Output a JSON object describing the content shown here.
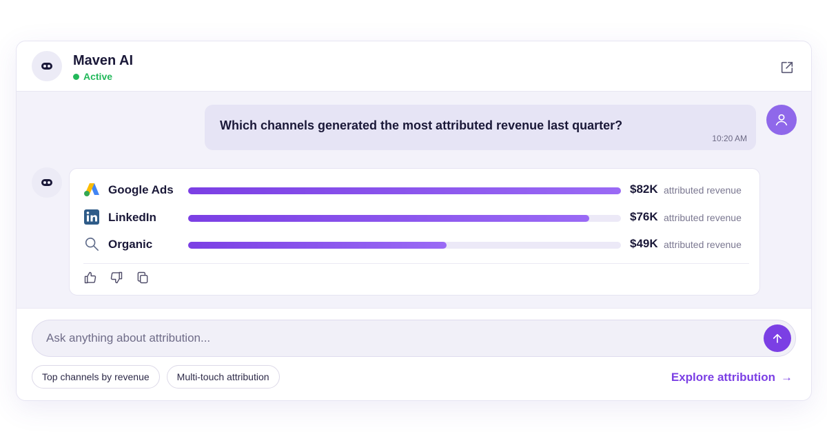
{
  "header": {
    "title": "Maven AI",
    "status": "Active",
    "bot_icon": "robot-icon",
    "external_icon": "external-link-icon"
  },
  "user_message": {
    "text": "Which channels generated the most attributed revenue last quarter?",
    "time": "10:20 AM",
    "avatar_icon": "user-icon"
  },
  "answer": {
    "rows": [
      {
        "channel": "Google Ads",
        "icon": "google-ads-icon",
        "amount": "$82K",
        "suffix": "attributed revenue",
        "value": 82
      },
      {
        "channel": "LinkedIn",
        "icon": "linkedin-icon",
        "amount": "$76K",
        "suffix": "attributed revenue",
        "value": 76
      },
      {
        "channel": "Organic",
        "icon": "search-icon",
        "amount": "$49K",
        "suffix": "attributed revenue",
        "value": 49
      }
    ],
    "max_value": 82,
    "action_icons": [
      "thumbs-up-icon",
      "thumbs-down-icon",
      "copy-icon"
    ]
  },
  "composer": {
    "placeholder": "Ask anything about attribution...",
    "value": "",
    "send_icon": "arrow-up-icon"
  },
  "suggestions": [
    "Top channels by revenue",
    "Multi-touch attribution"
  ],
  "explore": {
    "label": "Explore attribution",
    "arrow": "→"
  },
  "colors": {
    "accent": "#7b3fe4",
    "status": "#22b85a",
    "user_avatar": "#8f68ea",
    "bar_track": "#ece9f7"
  }
}
